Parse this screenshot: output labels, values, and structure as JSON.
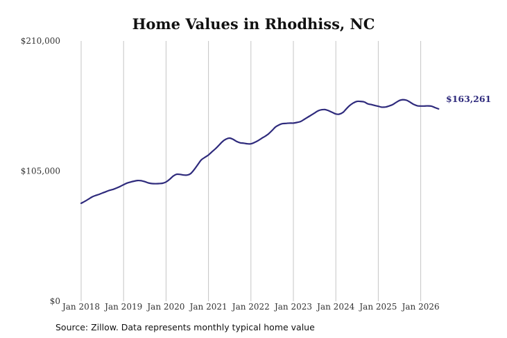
{
  "title": "Home Values in Rhodhiss, NC",
  "source": "Source: Zillow. Data represents monthly typical home value",
  "chart_data": {
    "type": "line",
    "title": "Home Values in Rhodhiss, NC",
    "xlabel": "",
    "ylabel": "",
    "ylim": [
      0,
      210000
    ],
    "yticks": [
      {
        "value": 0,
        "label": "$0"
      },
      {
        "value": 105000,
        "label": "$105,000"
      },
      {
        "value": 210000,
        "label": "$210,000"
      }
    ],
    "xticks": [
      {
        "value": 2018,
        "label": "Jan 2018"
      },
      {
        "value": 2019,
        "label": "Jan 2019"
      },
      {
        "value": 2020,
        "label": "Jan 2020"
      },
      {
        "value": 2021,
        "label": "Jan 2021"
      },
      {
        "value": 2022,
        "label": "Jan 2022"
      },
      {
        "value": 2023,
        "label": "Jan 2023"
      },
      {
        "value": 2024,
        "label": "Jan 2024"
      },
      {
        "value": 2025,
        "label": "Jan 2025"
      },
      {
        "value": 2026,
        "label": "Jan 2026"
      }
    ],
    "xlim": [
      2018,
      2026.42
    ],
    "grid": "vertical",
    "line_color": "#2e2a7c",
    "end_label": "$163,261",
    "series": [
      {
        "x": [
          2018.0,
          2018.08,
          2018.17,
          2018.25,
          2018.33,
          2018.42,
          2018.5,
          2018.58,
          2018.67,
          2018.75,
          2018.83,
          2018.92,
          2019.0,
          2019.08,
          2019.17,
          2019.25,
          2019.33,
          2019.42,
          2019.5,
          2019.58,
          2019.67,
          2019.75,
          2019.83,
          2019.92,
          2020.0,
          2020.08,
          2020.17,
          2020.25,
          2020.33,
          2020.42,
          2020.5,
          2020.58,
          2020.67,
          2020.75,
          2020.83,
          2020.92,
          2021.0,
          2021.08,
          2021.17,
          2021.25,
          2021.33,
          2021.42,
          2021.5,
          2021.58,
          2021.67,
          2021.75,
          2021.83,
          2021.92,
          2022.0,
          2022.08,
          2022.17,
          2022.25,
          2022.33,
          2022.42,
          2022.5,
          2022.58,
          2022.67,
          2022.75,
          2022.83,
          2022.92,
          2023.0,
          2023.08,
          2023.17,
          2023.25,
          2023.33,
          2023.42,
          2023.5,
          2023.58,
          2023.67,
          2023.75,
          2023.83,
          2023.92,
          2024.0,
          2024.08,
          2024.17,
          2024.25,
          2024.33,
          2024.42,
          2024.5,
          2024.58,
          2024.67,
          2024.75,
          2024.83,
          2024.92,
          2025.0,
          2025.08,
          2025.17,
          2025.25,
          2025.33,
          2025.42,
          2025.5,
          2025.58,
          2025.67,
          2025.75,
          2025.83,
          2025.92,
          2026.0,
          2026.08,
          2026.17,
          2026.25,
          2026.33,
          2026.42
        ],
        "values": [
          79000,
          80500,
          82300,
          84000,
          85200,
          86200,
          87300,
          88300,
          89500,
          90200,
          91300,
          92600,
          94000,
          95300,
          96200,
          96900,
          97400,
          97200,
          96500,
          95500,
          94900,
          94800,
          94900,
          95200,
          96200,
          98200,
          101000,
          102400,
          102300,
          101800,
          101800,
          103000,
          106500,
          110300,
          114000,
          116200,
          118000,
          120500,
          123200,
          126000,
          128800,
          130900,
          131600,
          130600,
          128800,
          127800,
          127500,
          127000,
          127000,
          128000,
          129600,
          131400,
          133000,
          135200,
          137800,
          140600,
          142400,
          143300,
          143500,
          143700,
          143700,
          144200,
          145000,
          146600,
          148300,
          150200,
          151900,
          153600,
          154500,
          154600,
          153700,
          152300,
          151100,
          150900,
          152400,
          155300,
          158000,
          160100,
          161200,
          161200,
          160800,
          159300,
          158700,
          157900,
          157300,
          156600,
          156700,
          157500,
          158500,
          160400,
          162000,
          162600,
          162100,
          160600,
          158900,
          157700,
          157500,
          157500,
          157600,
          157400,
          156300,
          163261
        ]
      }
    ]
  }
}
